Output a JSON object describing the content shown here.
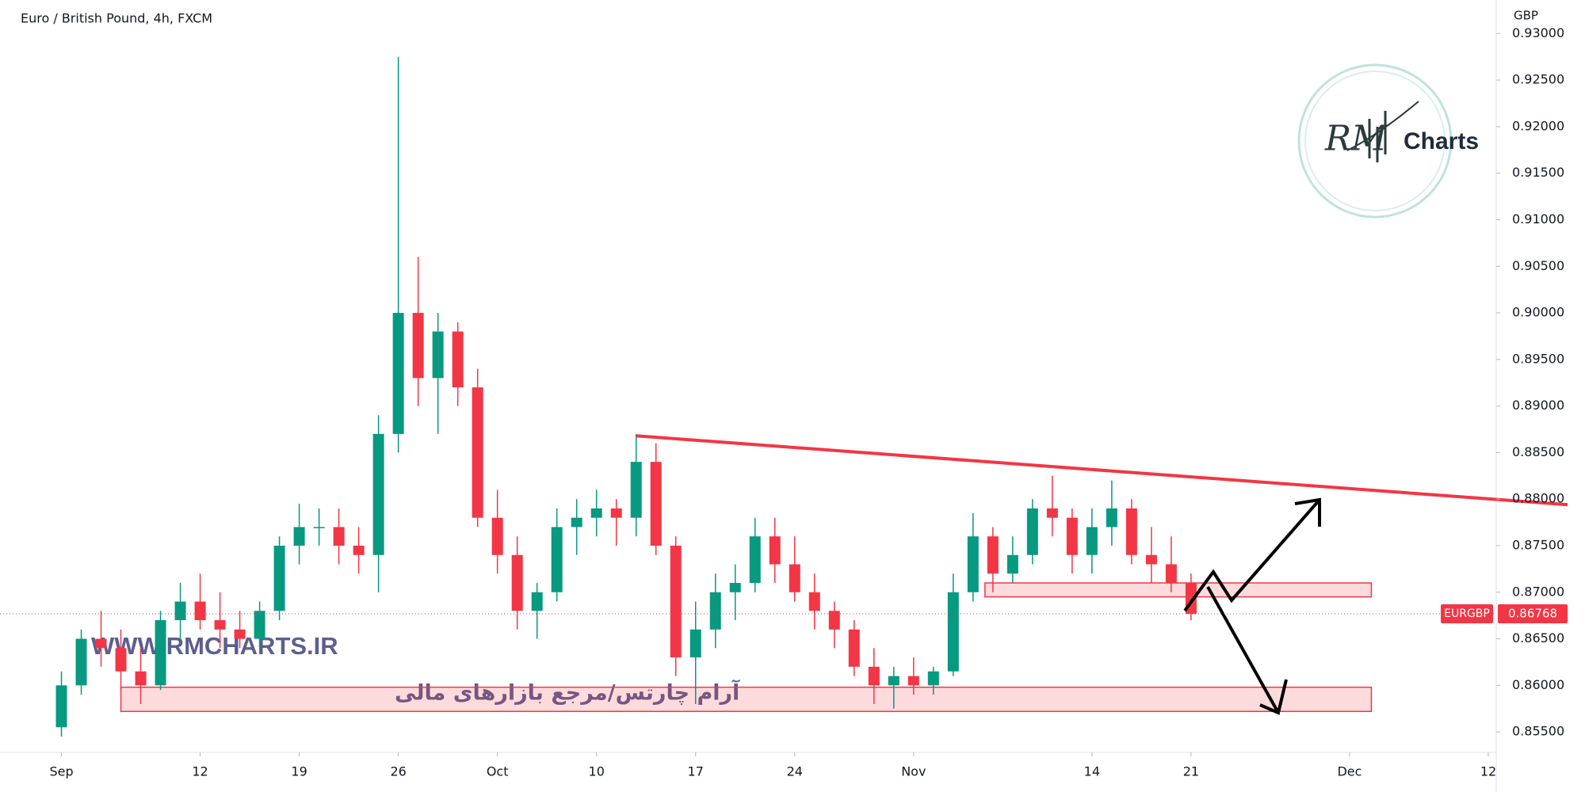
{
  "chart_data": {
    "type": "candlestick",
    "title": "Euro / British Pound, 4h, FXCM",
    "currency": "GBP",
    "symbol": "EURGBP",
    "x": [
      0,
      1,
      2,
      3,
      4,
      5,
      6,
      7,
      8,
      9,
      10,
      11,
      12,
      13,
      14,
      15,
      16,
      17,
      18,
      19,
      20,
      21,
      22,
      23,
      24,
      25,
      26,
      27,
      28,
      29,
      30,
      31,
      32,
      33,
      34,
      35,
      36,
      37,
      38,
      39,
      40,
      41,
      42,
      43,
      44,
      45,
      46,
      47,
      48,
      49,
      50,
      51,
      52,
      53,
      54,
      55,
      56,
      57
    ],
    "open": [
      0.8555,
      0.86,
      0.865,
      0.864,
      0.8615,
      0.86,
      0.867,
      0.869,
      0.867,
      0.866,
      0.865,
      0.868,
      0.875,
      0.877,
      0.877,
      0.875,
      0.874,
      0.887,
      0.9,
      0.893,
      0.898,
      0.892,
      0.878,
      0.874,
      0.868,
      0.87,
      0.877,
      0.878,
      0.879,
      0.878,
      0.884,
      0.875,
      0.863,
      0.866,
      0.87,
      0.871,
      0.876,
      0.873,
      0.87,
      0.868,
      0.866,
      0.862,
      0.86,
      0.861,
      0.86,
      0.8615,
      0.87,
      0.876,
      0.872,
      0.874,
      0.879,
      0.878,
      0.874,
      0.877,
      0.879,
      0.874,
      0.873,
      0.871
    ],
    "high": [
      0.8615,
      0.866,
      0.868,
      0.866,
      0.864,
      0.868,
      0.871,
      0.872,
      0.87,
      0.868,
      0.869,
      0.876,
      0.8795,
      0.879,
      0.879,
      0.877,
      0.889,
      0.9275,
      0.906,
      0.9,
      0.899,
      0.894,
      0.881,
      0.876,
      0.871,
      0.879,
      0.88,
      0.881,
      0.88,
      0.887,
      0.886,
      0.876,
      0.869,
      0.872,
      0.873,
      0.878,
      0.878,
      0.876,
      0.872,
      0.869,
      0.867,
      0.864,
      0.862,
      0.863,
      0.862,
      0.872,
      0.8785,
      0.877,
      0.876,
      0.88,
      0.8825,
      0.879,
      0.879,
      0.882,
      0.88,
      0.877,
      0.876,
      0.872
    ],
    "low": [
      0.8545,
      0.859,
      0.862,
      0.8595,
      0.858,
      0.8595,
      0.865,
      0.866,
      0.864,
      0.864,
      0.864,
      0.867,
      0.873,
      0.875,
      0.873,
      0.872,
      0.87,
      0.885,
      0.89,
      0.887,
      0.89,
      0.877,
      0.872,
      0.866,
      0.865,
      0.869,
      0.874,
      0.876,
      0.875,
      0.876,
      0.874,
      0.861,
      0.858,
      0.864,
      0.867,
      0.87,
      0.871,
      0.869,
      0.866,
      0.864,
      0.861,
      0.858,
      0.8575,
      0.859,
      0.859,
      0.861,
      0.869,
      0.87,
      0.871,
      0.873,
      0.876,
      0.872,
      0.872,
      0.875,
      0.873,
      0.871,
      0.87,
      0.867
    ],
    "close": [
      0.86,
      0.865,
      0.864,
      0.8615,
      0.86,
      0.867,
      0.869,
      0.867,
      0.866,
      0.865,
      0.868,
      0.875,
      0.877,
      0.877,
      0.875,
      0.874,
      0.887,
      0.9,
      0.893,
      0.898,
      0.892,
      0.878,
      0.874,
      0.868,
      0.87,
      0.877,
      0.878,
      0.879,
      0.878,
      0.884,
      0.875,
      0.863,
      0.866,
      0.87,
      0.871,
      0.876,
      0.873,
      0.87,
      0.868,
      0.866,
      0.862,
      0.86,
      0.861,
      0.86,
      0.8615,
      0.87,
      0.876,
      0.872,
      0.874,
      0.879,
      0.878,
      0.874,
      0.877,
      0.879,
      0.874,
      0.873,
      0.871,
      0.86768
    ],
    "up_color": "#089981",
    "down_color": "#f23645",
    "xlim": [
      -3.1,
      72.4
    ],
    "ylim": [
      0.8528,
      0.9336
    ],
    "grid": false,
    "xticks": [
      {
        "value": 0,
        "label": "Sep"
      },
      {
        "value": 7,
        "label": "12"
      },
      {
        "value": 12,
        "label": "19"
      },
      {
        "value": 17,
        "label": "26"
      },
      {
        "value": 22,
        "label": "Oct"
      },
      {
        "value": 27,
        "label": "10"
      },
      {
        "value": 32,
        "label": "17"
      },
      {
        "value": 37,
        "label": "24"
      },
      {
        "value": 43,
        "label": "Nov"
      },
      {
        "value": 52,
        "label": "14"
      },
      {
        "value": 57,
        "label": "21"
      },
      {
        "value": 65,
        "label": "Dec"
      },
      {
        "value": 72,
        "label": "12"
      }
    ],
    "yticks": [
      {
        "value": 0.855,
        "label": "0.85500"
      },
      {
        "value": 0.86,
        "label": "0.86000"
      },
      {
        "value": 0.865,
        "label": "0.86500"
      },
      {
        "value": 0.87,
        "label": "0.87000"
      },
      {
        "value": 0.875,
        "label": "0.87500"
      },
      {
        "value": 0.88,
        "label": "0.88000"
      },
      {
        "value": 0.885,
        "label": "0.88500"
      },
      {
        "value": 0.89,
        "label": "0.89000"
      },
      {
        "value": 0.895,
        "label": "0.89500"
      },
      {
        "value": 0.9,
        "label": "0.90000"
      },
      {
        "value": 0.905,
        "label": "0.90500"
      },
      {
        "value": 0.91,
        "label": "0.91000"
      },
      {
        "value": 0.915,
        "label": "0.91500"
      },
      {
        "value": 0.92,
        "label": "0.92000"
      },
      {
        "value": 0.925,
        "label": "0.92500"
      },
      {
        "value": 0.93,
        "label": "0.93000"
      }
    ],
    "last_price": 0.86768,
    "last_price_color": "#f23645",
    "trendline": {
      "x": [
        29,
        76
      ],
      "y": [
        0.8868,
        0.8794
      ],
      "color": "#f23645"
    },
    "zones": [
      {
        "x": [
          46.6,
          66.1
        ],
        "y": [
          0.8695,
          0.871
        ],
        "color": "#f23645"
      },
      {
        "x": [
          3,
          66.1
        ],
        "y": [
          0.8572,
          0.8598
        ],
        "color": "#f23645"
      }
    ]
  },
  "watermark": {
    "url": "WWW.RMCHARTS.IR",
    "tagline": "آرام چارتس/مرجع بازارهای مالی",
    "logo_script": "RM",
    "logo": "Charts"
  }
}
